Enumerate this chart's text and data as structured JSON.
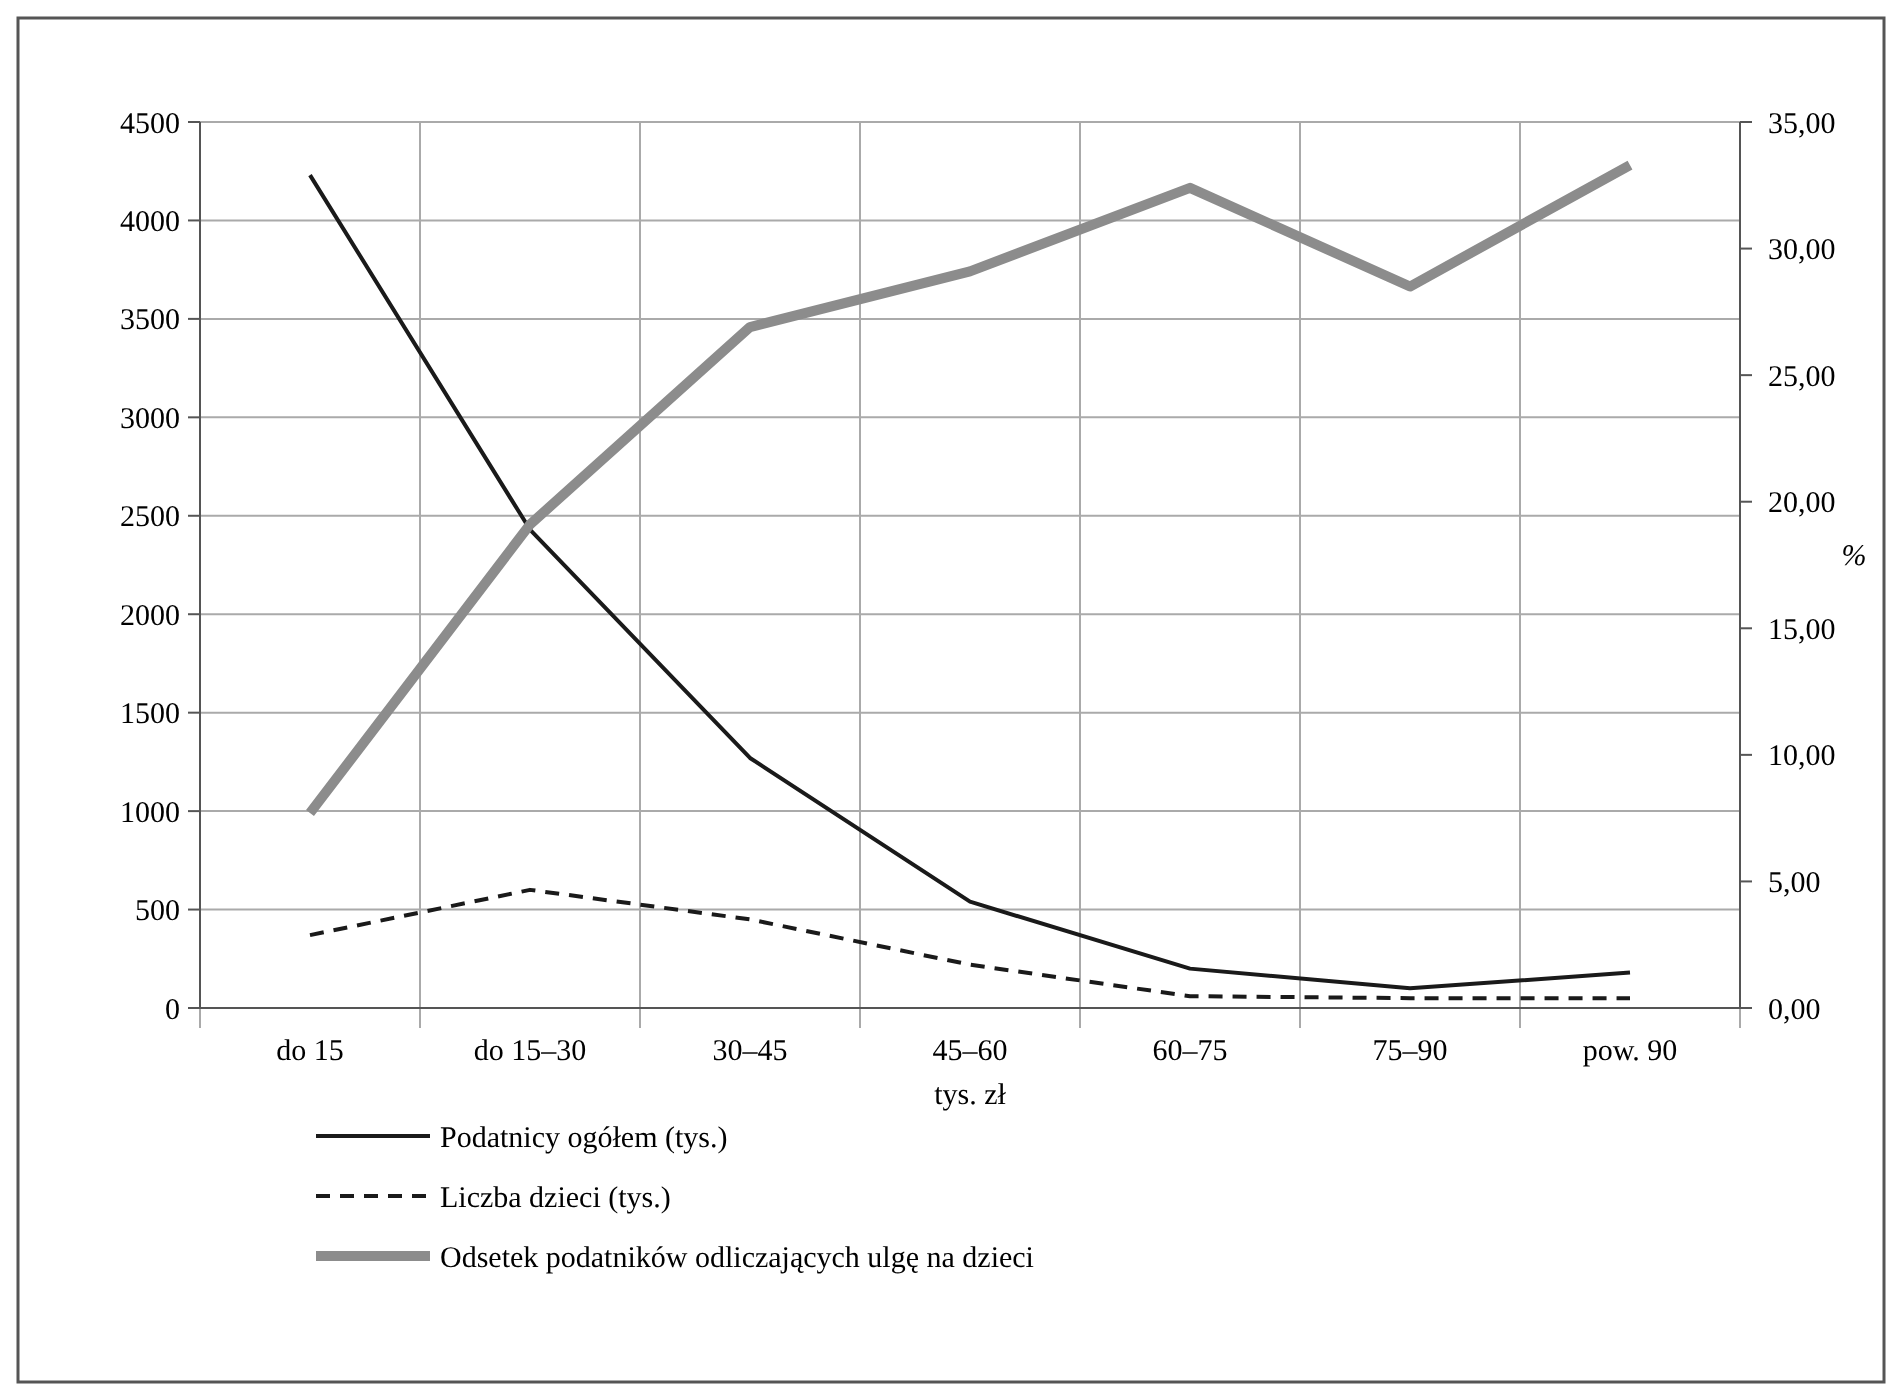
{
  "chart_data": {
    "type": "line",
    "xlabel": "tys. zł",
    "y2label": "%",
    "categories": [
      "do 15",
      "do 15–30",
      "30–45",
      "45–60",
      "60–75",
      "75–90",
      "pow. 90"
    ],
    "series": [
      {
        "name": "Podatnicy ogółem (tys.)",
        "color": "#1a1a1a",
        "line_style": "solid",
        "values": [
          4230,
          2430,
          1270,
          540,
          200,
          100,
          180
        ]
      },
      {
        "name": "Liczba dzieci (tys.)",
        "color": "#1a1a1a",
        "line_style": "dashed",
        "values": [
          370,
          600,
          450,
          220,
          60,
          50,
          50
        ]
      },
      {
        "name": "Odsetek podatników odliczających ulgę na dzieci",
        "color": "#8c8c8c",
        "line_style": "solid",
        "axis": "y2",
        "values": [
          7.7,
          19.1,
          26.9,
          29.1,
          32.4,
          28.5,
          33.3
        ]
      }
    ],
    "ylim": [
      0,
      4500
    ],
    "yticks": [
      0,
      500,
      1000,
      1500,
      2000,
      2500,
      3000,
      3500,
      4000,
      4500
    ],
    "y2lim": [
      0,
      35
    ],
    "y2ticks": [
      {
        "value": 0,
        "label": "0,00"
      },
      {
        "value": 5,
        "label": "5,00"
      },
      {
        "value": 10,
        "label": "10,00"
      },
      {
        "value": 15,
        "label": "15,00"
      },
      {
        "value": 20,
        "label": "20,00"
      },
      {
        "value": 25,
        "label": "25,00"
      },
      {
        "value": 30,
        "label": "30,00"
      },
      {
        "value": 35,
        "label": "35,00"
      }
    ],
    "grid": true,
    "legend": "bottom left",
    "marker": "none"
  }
}
